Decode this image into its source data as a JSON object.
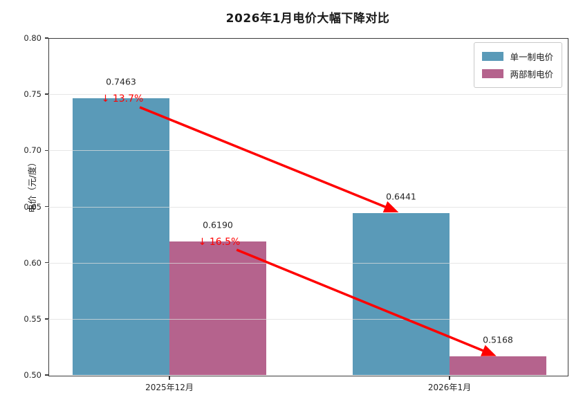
{
  "chart_data": {
    "type": "bar",
    "title": "2026年1月电价大幅下降对比",
    "ylabel": "电价（元/度）",
    "xlabel": "",
    "categories": [
      "2025年12月",
      "2026年1月"
    ],
    "series": [
      {
        "name": "单一制电价",
        "color": "#5A9AB8",
        "values": [
          0.7463,
          0.6441
        ]
      },
      {
        "name": "两部制电价",
        "color": "#B5638D",
        "values": [
          0.619,
          0.5168
        ]
      }
    ],
    "ylim": [
      0.5,
      0.8
    ],
    "yticks": [
      0.5,
      0.55,
      0.6,
      0.65,
      0.7,
      0.75,
      0.8
    ],
    "ytick_format_decimals": 2,
    "value_label_decimals": 4,
    "grid": true,
    "legend_position": "upper right",
    "annotations": [
      {
        "text": "↓ 13.7%",
        "color": "#FF0000",
        "series": 0,
        "category": 0
      },
      {
        "text": "↓ 16.5%",
        "color": "#FF0000",
        "series": 1,
        "category": 0
      }
    ],
    "arrows": [
      {
        "x1": -0.106,
        "y1": 0.7384,
        "x2": 0.807,
        "y2": 0.646,
        "color": "#FF0000"
      },
      {
        "x1": 0.24,
        "y1": 0.6115,
        "x2": 1.156,
        "y2": 0.518,
        "color": "#FF0000"
      }
    ]
  }
}
